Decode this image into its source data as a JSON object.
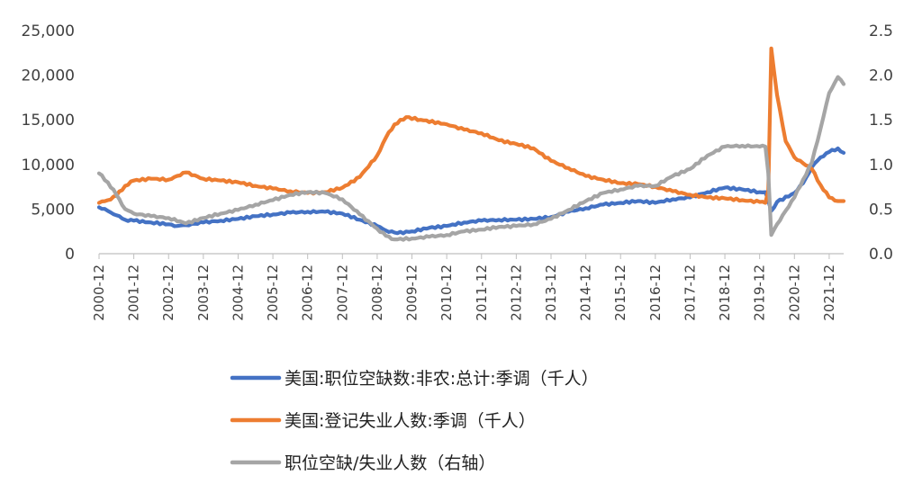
{
  "chart_data": {
    "type": "line",
    "title": "",
    "x_tick_labels": [
      "2000-12",
      "2001-12",
      "2002-12",
      "2003-12",
      "2004-12",
      "2005-12",
      "2006-12",
      "2007-12",
      "2008-12",
      "2009-12",
      "2010-12",
      "2011-12",
      "2012-12",
      "2013-12",
      "2014-12",
      "2015-12",
      "2016-12",
      "2017-12",
      "2018-12",
      "2019-12",
      "2020-12",
      "2021-12"
    ],
    "x_range": [
      "2000-12",
      "2022-05"
    ],
    "y_left": {
      "ticks": [
        "0",
        "5,000",
        "10,000",
        "15,000",
        "20,000",
        "25,000"
      ],
      "range": [
        0,
        25000
      ]
    },
    "y_right": {
      "ticks": [
        "0.0",
        "0.5",
        "1.0",
        "1.5",
        "2.0",
        "2.5"
      ],
      "range": [
        0,
        2.5
      ]
    },
    "grid": false,
    "legend_position": "bottom",
    "series": [
      {
        "name": "美国:职位空缺数:非农:总计:季调（千人）",
        "axis": "left",
        "color": "#4472C4",
        "points": [
          [
            "2000-12",
            5200
          ],
          [
            "2001-03",
            4800
          ],
          [
            "2001-06",
            4300
          ],
          [
            "2001-09",
            3800
          ],
          [
            "2001-12",
            3700
          ],
          [
            "2002-06",
            3500
          ],
          [
            "2002-12",
            3300
          ],
          [
            "2003-03",
            3100
          ],
          [
            "2003-06",
            3200
          ],
          [
            "2003-12",
            3500
          ],
          [
            "2004-06",
            3700
          ],
          [
            "2004-12",
            3900
          ],
          [
            "2005-06",
            4200
          ],
          [
            "2005-12",
            4400
          ],
          [
            "2006-06",
            4600
          ],
          [
            "2006-12",
            4700
          ],
          [
            "2007-06",
            4700
          ],
          [
            "2007-12",
            4500
          ],
          [
            "2008-06",
            3800
          ],
          [
            "2008-12",
            3100
          ],
          [
            "2009-03",
            2600
          ],
          [
            "2009-07",
            2300
          ],
          [
            "2009-12",
            2500
          ],
          [
            "2010-06",
            2900
          ],
          [
            "2010-12",
            3100
          ],
          [
            "2011-06",
            3500
          ],
          [
            "2011-12",
            3700
          ],
          [
            "2012-06",
            3800
          ],
          [
            "2012-12",
            3800
          ],
          [
            "2013-06",
            3900
          ],
          [
            "2013-12",
            4100
          ],
          [
            "2014-06",
            4700
          ],
          [
            "2014-12",
            5100
          ],
          [
            "2015-06",
            5500
          ],
          [
            "2015-12",
            5700
          ],
          [
            "2016-06",
            5900
          ],
          [
            "2016-12",
            5700
          ],
          [
            "2017-06",
            6100
          ],
          [
            "2017-12",
            6300
          ],
          [
            "2018-06",
            6900
          ],
          [
            "2018-12",
            7400
          ],
          [
            "2019-06",
            7200
          ],
          [
            "2019-12",
            6900
          ],
          [
            "2020-02",
            6900
          ],
          [
            "2020-04",
            4800
          ],
          [
            "2020-06",
            5800
          ],
          [
            "2020-12",
            6800
          ],
          [
            "2021-03",
            7900
          ],
          [
            "2021-06",
            9700
          ],
          [
            "2021-09",
            10800
          ],
          [
            "2021-12",
            11400
          ],
          [
            "2022-03",
            11800
          ],
          [
            "2022-05",
            11300
          ]
        ]
      },
      {
        "name": "美国:登记失业人数:季调（千人）",
        "axis": "left",
        "color": "#ED7D31",
        "points": [
          [
            "2000-12",
            5700
          ],
          [
            "2001-03",
            6000
          ],
          [
            "2001-06",
            6500
          ],
          [
            "2001-09",
            7600
          ],
          [
            "2001-12",
            8200
          ],
          [
            "2002-06",
            8400
          ],
          [
            "2002-12",
            8300
          ],
          [
            "2003-06",
            9100
          ],
          [
            "2003-12",
            8400
          ],
          [
            "2004-06",
            8200
          ],
          [
            "2004-12",
            8000
          ],
          [
            "2005-06",
            7600
          ],
          [
            "2005-12",
            7300
          ],
          [
            "2006-06",
            7000
          ],
          [
            "2006-12",
            6800
          ],
          [
            "2007-06",
            6900
          ],
          [
            "2007-12",
            7400
          ],
          [
            "2008-06",
            8600
          ],
          [
            "2008-12",
            11000
          ],
          [
            "2009-03",
            13000
          ],
          [
            "2009-06",
            14500
          ],
          [
            "2009-10",
            15300
          ],
          [
            "2010-03",
            15000
          ],
          [
            "2010-12",
            14500
          ],
          [
            "2011-06",
            13900
          ],
          [
            "2011-12",
            13500
          ],
          [
            "2012-06",
            12700
          ],
          [
            "2012-12",
            12300
          ],
          [
            "2013-06",
            11800
          ],
          [
            "2013-12",
            10400
          ],
          [
            "2014-06",
            9600
          ],
          [
            "2014-12",
            8700
          ],
          [
            "2015-06",
            8300
          ],
          [
            "2015-12",
            7900
          ],
          [
            "2016-06",
            7800
          ],
          [
            "2016-12",
            7500
          ],
          [
            "2017-06",
            7000
          ],
          [
            "2017-12",
            6600
          ],
          [
            "2018-06",
            6300
          ],
          [
            "2018-12",
            6200
          ],
          [
            "2019-06",
            6000
          ],
          [
            "2019-12",
            5800
          ],
          [
            "2020-02",
            5700
          ],
          [
            "2020-03",
            7100
          ],
          [
            "2020-04",
            23000
          ],
          [
            "2020-06",
            17800
          ],
          [
            "2020-09",
            12600
          ],
          [
            "2020-12",
            10800
          ],
          [
            "2021-06",
            9500
          ],
          [
            "2021-09",
            7700
          ],
          [
            "2021-12",
            6300
          ],
          [
            "2022-03",
            5900
          ],
          [
            "2022-05",
            5900
          ]
        ]
      },
      {
        "name": "职位空缺/失业人数（右轴）",
        "axis": "right",
        "color": "#A5A5A5",
        "points": [
          [
            "2000-12",
            0.9
          ],
          [
            "2001-03",
            0.8
          ],
          [
            "2001-06",
            0.66
          ],
          [
            "2001-09",
            0.5
          ],
          [
            "2001-12",
            0.45
          ],
          [
            "2002-06",
            0.42
          ],
          [
            "2002-12",
            0.4
          ],
          [
            "2003-06",
            0.34
          ],
          [
            "2003-12",
            0.4
          ],
          [
            "2004-06",
            0.45
          ],
          [
            "2004-12",
            0.49
          ],
          [
            "2005-06",
            0.55
          ],
          [
            "2005-12",
            0.6
          ],
          [
            "2006-06",
            0.66
          ],
          [
            "2006-12",
            0.69
          ],
          [
            "2007-06",
            0.68
          ],
          [
            "2007-12",
            0.61
          ],
          [
            "2008-06",
            0.44
          ],
          [
            "2008-12",
            0.28
          ],
          [
            "2009-03",
            0.2
          ],
          [
            "2009-06",
            0.16
          ],
          [
            "2009-12",
            0.17
          ],
          [
            "2010-06",
            0.19
          ],
          [
            "2010-12",
            0.21
          ],
          [
            "2011-06",
            0.25
          ],
          [
            "2011-12",
            0.27
          ],
          [
            "2012-06",
            0.3
          ],
          [
            "2012-12",
            0.31
          ],
          [
            "2013-06",
            0.33
          ],
          [
            "2013-12",
            0.39
          ],
          [
            "2014-06",
            0.49
          ],
          [
            "2014-12",
            0.59
          ],
          [
            "2015-06",
            0.68
          ],
          [
            "2015-12",
            0.72
          ],
          [
            "2016-06",
            0.76
          ],
          [
            "2016-12",
            0.76
          ],
          [
            "2017-06",
            0.87
          ],
          [
            "2017-12",
            0.95
          ],
          [
            "2018-06",
            1.1
          ],
          [
            "2018-12",
            1.2
          ],
          [
            "2019-06",
            1.21
          ],
          [
            "2019-12",
            1.2
          ],
          [
            "2020-02",
            1.2
          ],
          [
            "2020-03",
            0.9
          ],
          [
            "2020-04",
            0.21
          ],
          [
            "2020-06",
            0.33
          ],
          [
            "2020-12",
            0.63
          ],
          [
            "2021-03",
            0.83
          ],
          [
            "2021-06",
            1.02
          ],
          [
            "2021-09",
            1.4
          ],
          [
            "2021-12",
            1.8
          ],
          [
            "2022-03",
            1.98
          ],
          [
            "2022-05",
            1.9
          ]
        ]
      }
    ]
  }
}
